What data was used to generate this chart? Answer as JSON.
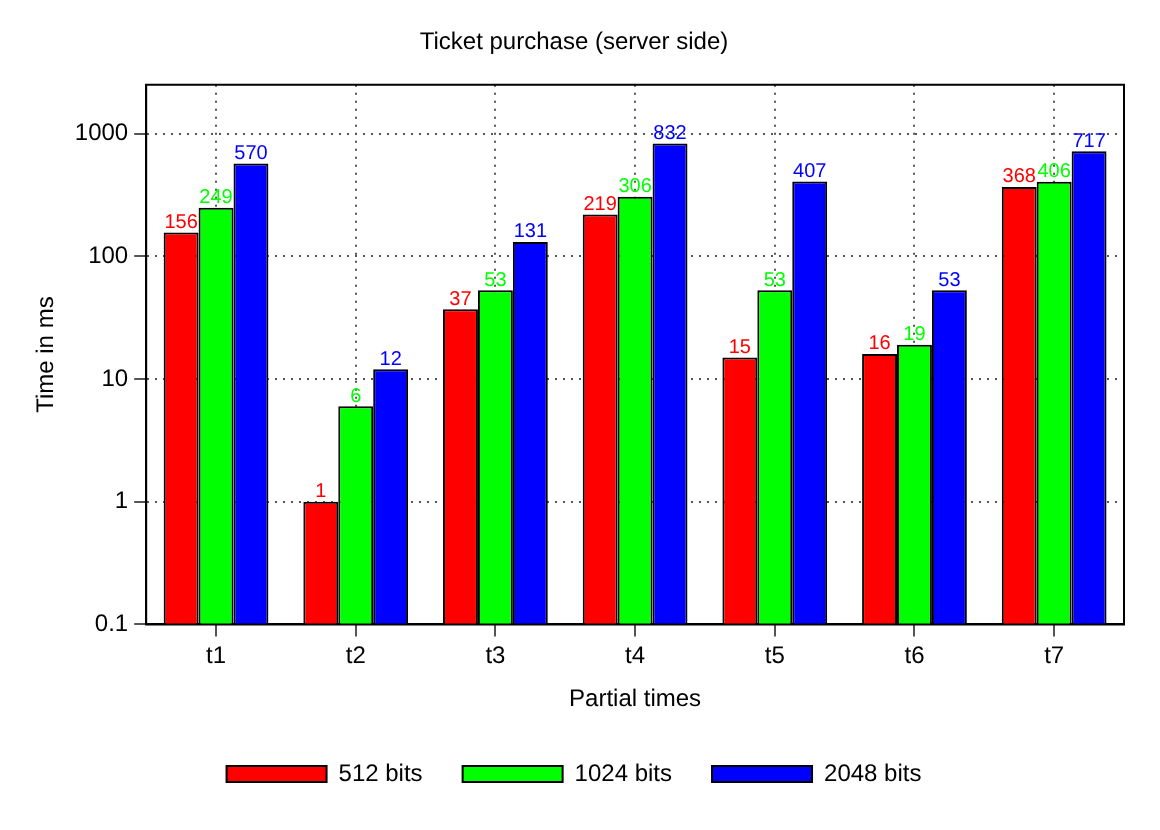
{
  "chart_data": {
    "type": "bar",
    "title": "Ticket purchase (server side)",
    "xlabel": "Partial times",
    "ylabel": "Time in ms",
    "categories": [
      "t1",
      "t2",
      "t3",
      "t4",
      "t5",
      "t6",
      "t7"
    ],
    "series": [
      {
        "name": "512 bits",
        "color": "#ff0000",
        "values": [
          156,
          1,
          37,
          219,
          15,
          16,
          368
        ]
      },
      {
        "name": "1024 bits",
        "color": "#00ff00",
        "values": [
          249,
          6,
          53,
          306,
          53,
          19,
          406
        ]
      },
      {
        "name": "2048 bits",
        "color": "#0000ff",
        "values": [
          570,
          12,
          131,
          832,
          407,
          53,
          717
        ]
      }
    ],
    "log": true,
    "ylim": [
      0.1,
      2500
    ],
    "yticks": [
      0.1,
      1,
      10,
      100,
      1000
    ],
    "grid": true,
    "legend": "bottom",
    "data_labels": true
  }
}
